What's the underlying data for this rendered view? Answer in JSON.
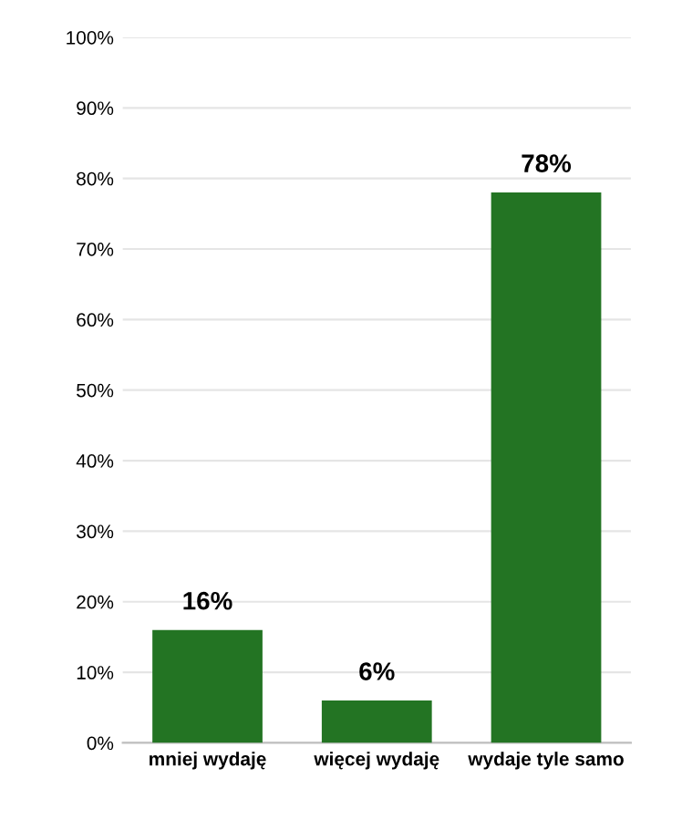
{
  "chart_data": {
    "type": "bar",
    "categories": [
      "mniej wydaję",
      "więcej wydaję",
      "wydaje tyle samo"
    ],
    "values": [
      16,
      6,
      78
    ],
    "color": "#237423",
    "value_labels": [
      "16%",
      "6%",
      "78%"
    ],
    "ylim": [
      0,
      100
    ],
    "yticks": [
      {
        "value": 0,
        "label": "0%"
      },
      {
        "value": 10,
        "label": "10%"
      },
      {
        "value": 20,
        "label": "20%"
      },
      {
        "value": 30,
        "label": "30%"
      },
      {
        "value": 40,
        "label": "40%"
      },
      {
        "value": 50,
        "label": "50%"
      },
      {
        "value": 60,
        "label": "60%"
      },
      {
        "value": 70,
        "label": "70%"
      },
      {
        "value": 80,
        "label": "80%"
      },
      {
        "value": 90,
        "label": "90%"
      },
      {
        "value": 100,
        "label": "100%"
      }
    ],
    "grid": "y",
    "legend": false
  }
}
